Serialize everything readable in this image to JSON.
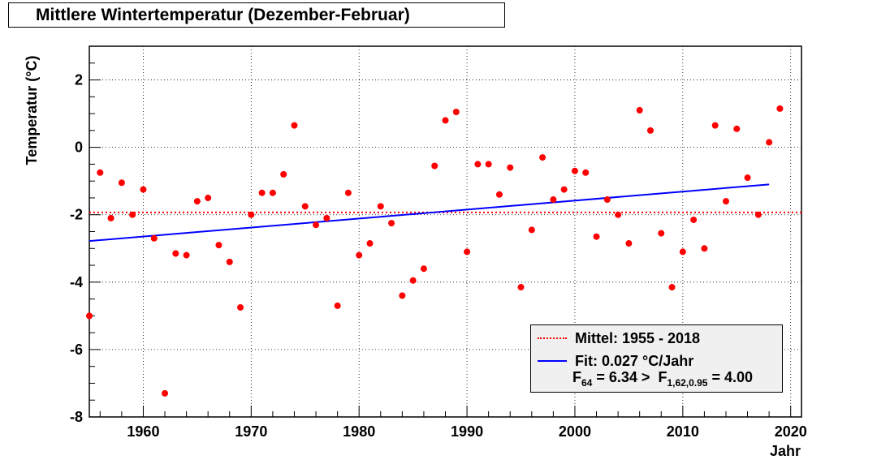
{
  "chart_data": {
    "type": "scatter",
    "title": "Mittlere Wintertemperatur (Dezember-Februar)",
    "xlabel": "Jahr",
    "ylabel": "Temperatur (°C)",
    "xlim": [
      1955,
      2021
    ],
    "ylim": [
      -8,
      3
    ],
    "x_ticks": [
      1960,
      1970,
      1980,
      1990,
      2000,
      2010,
      2020
    ],
    "y_ticks": [
      -8,
      -6,
      -4,
      -2,
      0,
      2
    ],
    "grid": true,
    "series": [
      {
        "name": "Wintertemperatur",
        "color": "#ff0000",
        "x": [
          1955,
          1956,
          1957,
          1958,
          1959,
          1960,
          1961,
          1962,
          1963,
          1964,
          1965,
          1966,
          1967,
          1968,
          1969,
          1970,
          1971,
          1972,
          1973,
          1974,
          1975,
          1976,
          1977,
          1978,
          1979,
          1980,
          1981,
          1982,
          1983,
          1984,
          1985,
          1986,
          1987,
          1988,
          1989,
          1990,
          1991,
          1992,
          1993,
          1994,
          1995,
          1996,
          1997,
          1998,
          1999,
          2000,
          2001,
          2002,
          2003,
          2004,
          2005,
          2006,
          2007,
          2008,
          2009,
          2010,
          2011,
          2012,
          2013,
          2014,
          2015,
          2016,
          2017,
          2018,
          2019
        ],
        "y": [
          -5.0,
          -0.75,
          -2.1,
          -1.05,
          -2.0,
          -1.25,
          -2.7,
          -7.3,
          -3.15,
          -3.2,
          -1.6,
          -1.5,
          -2.9,
          -3.4,
          -4.75,
          -2.0,
          -1.35,
          -1.35,
          -0.8,
          0.65,
          -1.75,
          -2.3,
          -2.1,
          -4.7,
          -1.35,
          -3.2,
          -2.85,
          -1.75,
          -2.25,
          -4.4,
          -3.95,
          -3.6,
          -0.55,
          0.8,
          1.05,
          -3.1,
          -0.5,
          -0.5,
          -1.4,
          -0.6,
          -4.15,
          -2.45,
          -0.3,
          -1.55,
          -1.25,
          -0.7,
          -0.75,
          -2.65,
          -1.55,
          -2.0,
          -2.85,
          1.1,
          0.5,
          -2.55,
          -4.15,
          -3.1,
          -2.15,
          -3.0,
          0.65,
          -1.6,
          0.55,
          -0.9,
          -2.0,
          0.15,
          1.15
        ]
      }
    ],
    "mean": {
      "value": -1.93,
      "color": "#ff0000",
      "label": "Mittel: 1955 - 2018"
    },
    "fit": {
      "x_start": 1955,
      "y_start": -2.78,
      "x_end": 2018,
      "y_end": -1.1,
      "color": "#0000ff",
      "label": "Fit: 0.027 °C/Jahr"
    },
    "ftest": {
      "f1": "F",
      "f1_sub": "64",
      "f1_val": " = 6.34 >",
      "f2": "F",
      "f2_sub": "1,62,0.95",
      "f2_val": " = 4.00"
    }
  }
}
